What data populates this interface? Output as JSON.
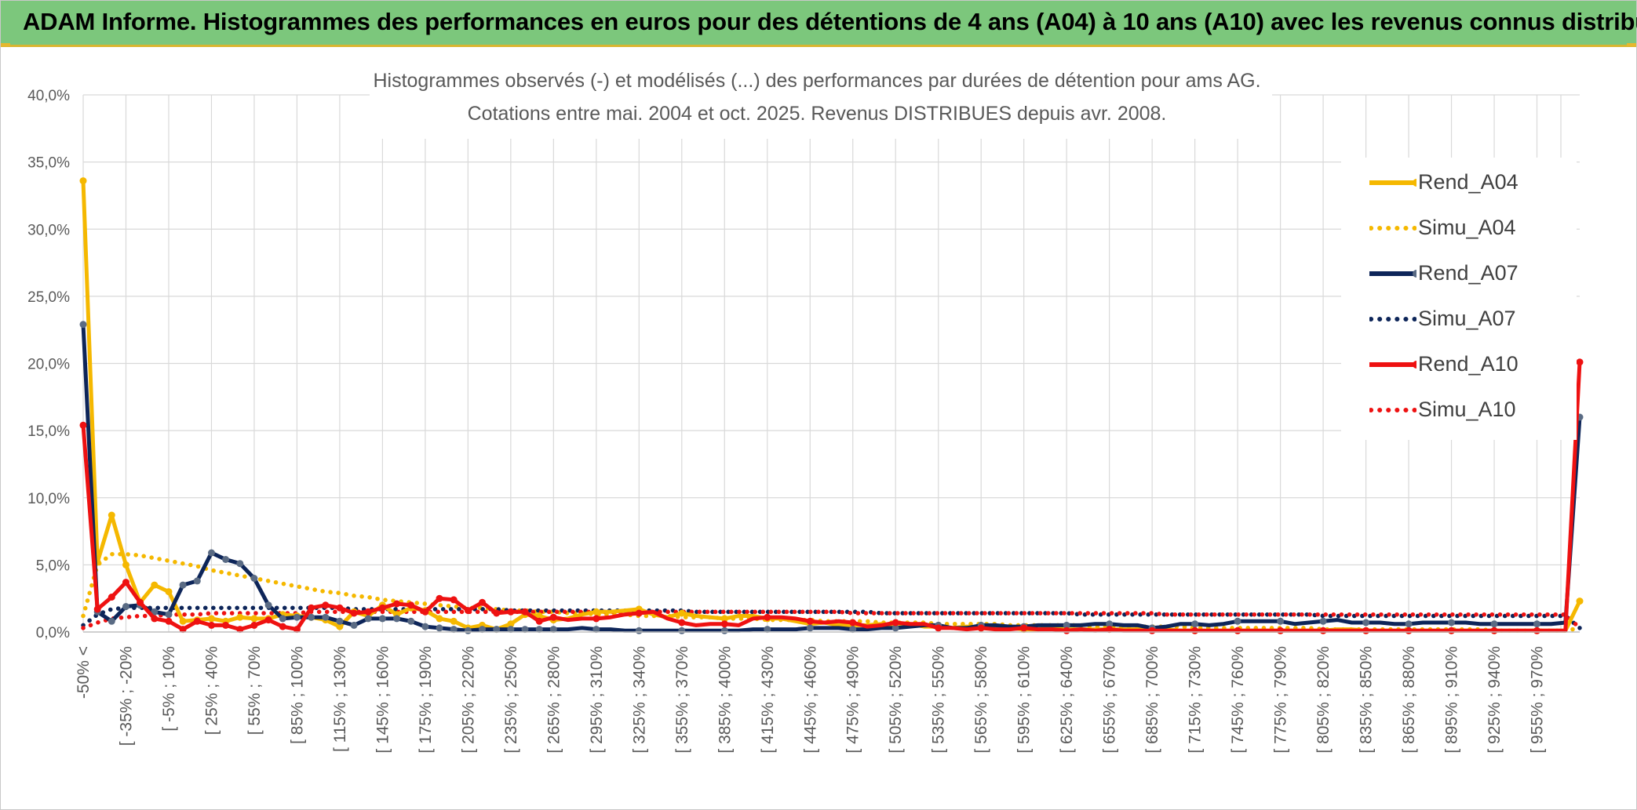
{
  "banner": {
    "title": "ADAM Informe. Histogrammes des performances en euros pour des détentions de 4 ans (A04) à 10 ans (A10) avec les revenus connus distribués"
  },
  "colors": {
    "a04": "#f5b800",
    "a07": "#0d2559",
    "a07_marker": "#5a6b84",
    "a10": "#ee1111",
    "banner": "#7cc77c",
    "grid": "#d9d9d9",
    "axis_text": "#595959"
  },
  "chart_data": {
    "type": "line",
    "title": "Histogrammes observés (-) et modélisés (...) des performances par durées de détention pour ams AG.",
    "subtitle": "Cotations entre mai. 2004 et oct. 2025. Revenus DISTRIBUES depuis avr. 2008.",
    "ylim": [
      0,
      40
    ],
    "y_ticks": [
      "0,0%",
      "5,0%",
      "10,0%",
      "15,0%",
      "20,0%",
      "25,0%",
      "30,0%",
      "35,0%",
      "40,0%"
    ],
    "x_tick_labels": [
      "-50% <",
      "[ -35% ; -20%",
      "[ -5% ; 10%",
      "[ 25% ; 40%",
      "[ 55% ; 70%",
      "[ 85% ; 100%",
      "[ 115% ; 130%",
      "[ 145% ; 160%",
      "[ 175% ; 190%",
      "[ 205% ; 220%",
      "[ 235% ; 250%",
      "[ 265% ; 280%",
      "[ 295% ; 310%",
      "[ 325% ; 340%",
      "[ 355% ; 370%",
      "[ 385% ; 400%",
      "[ 415% ; 430%",
      "[ 445% ; 460%",
      "[ 475% ; 490%",
      "[ 505% ; 520%",
      "[ 535% ; 550%",
      "[ 565% ; 580%",
      "[ 595% ; 610%",
      "[ 625% ; 640%",
      "[ 655% ; 670%",
      "[ 685% ; 700%",
      "[ 715% ; 730%",
      "[ 745% ; 760%",
      "[ 775% ; 790%",
      "[ 805% ; 820%",
      "[ 835% ; 850%",
      "[ 865% ; 880%",
      "[ 895% ; 910%",
      "[ 925% ; 940%",
      "[ 955% ; 970%"
    ],
    "legend_position": "right",
    "grid": true,
    "series": [
      {
        "name": "Rend_A04",
        "style": "solid",
        "color": "#f5b800",
        "values": [
          33.6,
          5.2,
          8.7,
          5.0,
          2.2,
          3.5,
          3.0,
          0.8,
          0.9,
          1.0,
          0.8,
          1.1,
          1.0,
          1.0,
          1.3,
          1.2,
          1.1,
          0.9,
          0.4,
          1.5,
          1.2,
          2.0,
          1.3,
          1.8,
          1.6,
          1.0,
          0.8,
          0.3,
          0.5,
          0.2,
          0.6,
          1.3,
          1.2,
          0.9,
          1.0,
          1.3,
          1.5,
          1.5,
          1.6,
          1.7,
          1.3,
          1.1,
          1.4,
          1.2,
          1.1,
          1.0,
          1.2,
          1.2,
          1.0,
          1.0,
          0.8,
          0.6,
          0.7,
          0.5,
          0.5,
          0.5,
          0.6,
          0.5,
          0.6,
          0.4,
          0.4,
          0.3,
          0.4,
          0.3,
          0.3,
          0.3,
          0.2,
          0.2,
          0.3,
          0.2,
          0.2,
          0.2,
          0.2,
          0.2,
          0.2,
          0.2,
          0.2,
          0.1,
          0.1,
          0.1,
          0.1,
          0.1,
          0.1,
          0.1,
          0.1,
          0.1,
          0.1,
          0.1,
          0.2,
          0.2,
          0.1,
          0.1,
          0.1,
          0.1,
          0.1,
          0.1,
          0.1,
          0.1,
          0.1,
          0.1,
          0.1,
          0.1,
          0.1,
          0.1,
          0.1,
          2.3
        ]
      },
      {
        "name": "Simu_A04",
        "style": "dotted",
        "color": "#f5b800",
        "values": [
          1.2,
          5.0,
          5.8,
          5.8,
          5.7,
          5.5,
          5.3,
          5.1,
          4.9,
          4.6,
          4.4,
          4.2,
          4.0,
          3.8,
          3.6,
          3.4,
          3.2,
          3.0,
          2.9,
          2.7,
          2.6,
          2.4,
          2.3,
          2.2,
          2.1,
          2.0,
          1.9,
          1.8,
          1.8,
          1.7,
          1.6,
          1.6,
          1.5,
          1.5,
          1.4,
          1.4,
          1.3,
          1.3,
          1.3,
          1.2,
          1.2,
          1.2,
          1.1,
          1.1,
          1.1,
          1.0,
          1.0,
          1.0,
          0.9,
          0.9,
          0.9,
          0.9,
          0.8,
          0.8,
          0.8,
          0.8,
          0.7,
          0.7,
          0.7,
          0.7,
          0.6,
          0.6,
          0.6,
          0.6,
          0.6,
          0.5,
          0.5,
          0.5,
          0.5,
          0.5,
          0.5,
          0.4,
          0.4,
          0.4,
          0.4,
          0.4,
          0.4,
          0.4,
          0.3,
          0.3,
          0.3,
          0.3,
          0.3,
          0.3,
          0.3,
          0.3,
          0.3,
          0.2,
          0.2,
          0.2,
          0.2,
          0.2,
          0.2,
          0.2,
          0.2,
          0.2,
          0.2,
          0.2,
          0.2,
          0.1,
          0.1,
          0.1,
          0.1,
          0.1,
          0.1,
          0.3
        ]
      },
      {
        "name": "Rend_A07",
        "style": "solid",
        "color": "#0d2559",
        "values": [
          22.9,
          1.5,
          0.8,
          1.9,
          2.0,
          1.5,
          1.3,
          3.5,
          3.8,
          5.9,
          5.4,
          5.1,
          4.0,
          2.0,
          1.0,
          1.1,
          1.1,
          1.1,
          0.8,
          0.5,
          1.0,
          1.0,
          1.0,
          0.8,
          0.4,
          0.3,
          0.2,
          0.1,
          0.2,
          0.2,
          0.2,
          0.2,
          0.2,
          0.2,
          0.2,
          0.3,
          0.2,
          0.2,
          0.1,
          0.1,
          0.1,
          0.1,
          0.1,
          0.1,
          0.1,
          0.1,
          0.1,
          0.2,
          0.2,
          0.2,
          0.2,
          0.3,
          0.3,
          0.3,
          0.2,
          0.2,
          0.3,
          0.3,
          0.4,
          0.5,
          0.5,
          0.3,
          0.3,
          0.5,
          0.5,
          0.4,
          0.4,
          0.5,
          0.5,
          0.5,
          0.5,
          0.6,
          0.6,
          0.5,
          0.5,
          0.3,
          0.4,
          0.6,
          0.6,
          0.5,
          0.6,
          0.8,
          0.8,
          0.8,
          0.8,
          0.6,
          0.7,
          0.8,
          0.9,
          0.7,
          0.7,
          0.7,
          0.6,
          0.6,
          0.7,
          0.7,
          0.7,
          0.7,
          0.6,
          0.6,
          0.6,
          0.6,
          0.6,
          0.6,
          0.7,
          16.0
        ]
      },
      {
        "name": "Simu_A07",
        "style": "dotted",
        "color": "#0d2559",
        "values": [
          0.5,
          1.3,
          1.7,
          1.8,
          1.8,
          1.8,
          1.8,
          1.8,
          1.8,
          1.8,
          1.8,
          1.8,
          1.8,
          1.8,
          1.8,
          1.8,
          1.8,
          1.8,
          1.8,
          1.7,
          1.7,
          1.7,
          1.7,
          1.7,
          1.7,
          1.7,
          1.7,
          1.7,
          1.7,
          1.7,
          1.6,
          1.6,
          1.6,
          1.6,
          1.6,
          1.6,
          1.6,
          1.6,
          1.6,
          1.6,
          1.6,
          1.6,
          1.6,
          1.5,
          1.5,
          1.5,
          1.5,
          1.5,
          1.5,
          1.5,
          1.5,
          1.5,
          1.5,
          1.5,
          1.5,
          1.5,
          1.4,
          1.4,
          1.4,
          1.4,
          1.4,
          1.4,
          1.4,
          1.4,
          1.4,
          1.4,
          1.4,
          1.4,
          1.4,
          1.4,
          1.3,
          1.3,
          1.3,
          1.3,
          1.3,
          1.3,
          1.3,
          1.3,
          1.3,
          1.3,
          1.3,
          1.3,
          1.3,
          1.3,
          1.3,
          1.3,
          1.3,
          1.2,
          1.2,
          1.2,
          1.2,
          1.2,
          1.2,
          1.2,
          1.2,
          1.2,
          1.2,
          1.2,
          1.2,
          1.2,
          1.2,
          1.2,
          1.2,
          1.2,
          1.2,
          0.3
        ]
      },
      {
        "name": "Rend_A10",
        "style": "solid",
        "color": "#ee1111",
        "values": [
          15.4,
          1.7,
          2.6,
          3.7,
          2.2,
          1.0,
          0.8,
          0.2,
          0.8,
          0.5,
          0.5,
          0.2,
          0.5,
          0.9,
          0.4,
          0.2,
          1.8,
          2.0,
          1.8,
          1.4,
          1.5,
          1.8,
          2.1,
          2.0,
          1.5,
          2.5,
          2.4,
          1.6,
          2.2,
          1.4,
          1.5,
          1.5,
          0.8,
          1.1,
          0.9,
          1.0,
          1.0,
          1.1,
          1.3,
          1.4,
          1.5,
          1.0,
          0.7,
          0.5,
          0.6,
          0.6,
          0.5,
          1.0,
          1.1,
          1.1,
          1.0,
          0.8,
          0.7,
          0.8,
          0.7,
          0.4,
          0.5,
          0.7,
          0.6,
          0.6,
          0.3,
          0.3,
          0.2,
          0.3,
          0.2,
          0.2,
          0.3,
          0.2,
          0.2,
          0.1,
          0.2,
          0.1,
          0.2,
          0.1,
          0.1,
          0.1,
          0.1,
          0.1,
          0.1,
          0.1,
          0.1,
          0.1,
          0.1,
          0.1,
          0.1,
          0.1,
          0.1,
          0.1,
          0.1,
          0.1,
          0.1,
          0.1,
          0.1,
          0.1,
          0.1,
          0.1,
          0.1,
          0.1,
          0.1,
          0.1,
          0.1,
          0.1,
          0.1,
          0.1,
          0.1,
          20.1
        ]
      },
      {
        "name": "Simu_A10",
        "style": "dotted",
        "color": "#ee1111",
        "values": [
          0.3,
          0.7,
          1.0,
          1.1,
          1.2,
          1.2,
          1.3,
          1.3,
          1.3,
          1.4,
          1.4,
          1.4,
          1.4,
          1.4,
          1.4,
          1.4,
          1.5,
          1.5,
          1.5,
          1.5,
          1.5,
          1.5,
          1.5,
          1.5,
          1.5,
          1.5,
          1.5,
          1.5,
          1.5,
          1.5,
          1.5,
          1.5,
          1.5,
          1.5,
          1.5,
          1.5,
          1.5,
          1.5,
          1.5,
          1.5,
          1.5,
          1.5,
          1.5,
          1.5,
          1.5,
          1.5,
          1.5,
          1.5,
          1.5,
          1.5,
          1.5,
          1.5,
          1.5,
          1.5,
          1.4,
          1.4,
          1.4,
          1.4,
          1.4,
          1.4,
          1.4,
          1.4,
          1.4,
          1.4,
          1.4,
          1.4,
          1.4,
          1.4,
          1.4,
          1.4,
          1.4,
          1.4,
          1.4,
          1.4,
          1.4,
          1.4,
          1.3,
          1.3,
          1.3,
          1.3,
          1.3,
          1.3,
          1.3,
          1.3,
          1.3,
          1.3,
          1.3,
          1.3,
          1.3,
          1.3,
          1.3,
          1.3,
          1.3,
          1.3,
          1.3,
          1.3,
          1.3,
          1.3,
          1.3,
          1.3,
          1.3,
          1.3,
          1.3,
          1.3,
          1.3,
          0.3
        ]
      }
    ]
  }
}
